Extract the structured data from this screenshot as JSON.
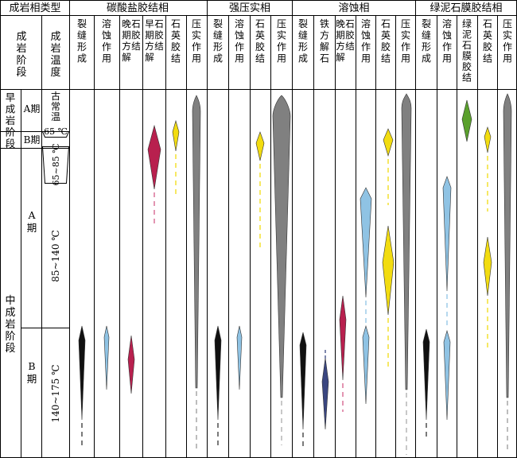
{
  "header": {
    "corner_label": "成岩相类型",
    "groups": [
      {
        "id": "carbonate",
        "label": "碳酸盐胶结相"
      },
      {
        "id": "compaction",
        "label": "强压实相"
      },
      {
        "id": "dissolution",
        "label": "溶蚀相"
      },
      {
        "id": "chlorite",
        "label": "绿泥石膜胶结相"
      }
    ],
    "stage_col": "成岩阶段",
    "temp_col": "成岩温度",
    "columns": [
      {
        "id": "c1",
        "label": "裂缝形成"
      },
      {
        "id": "c2",
        "label": "溶蚀作用"
      },
      {
        "id": "c3",
        "label": "晚期方解石胶结"
      },
      {
        "id": "c4",
        "label": "早期方解石胶结"
      },
      {
        "id": "c5",
        "label": "石英胶结"
      },
      {
        "id": "c6",
        "label": "压实作用"
      },
      {
        "id": "c7",
        "label": "裂缝形成"
      },
      {
        "id": "c8",
        "label": "溶蚀作用"
      },
      {
        "id": "c9",
        "label": "石英胶结"
      },
      {
        "id": "c10",
        "label": "压实作用"
      },
      {
        "id": "c11",
        "label": "裂缝形成"
      },
      {
        "id": "c12",
        "label": "铁方解石"
      },
      {
        "id": "c13",
        "label": "晚期方解石胶结"
      },
      {
        "id": "c14",
        "label": "溶蚀作用"
      },
      {
        "id": "c15",
        "label": "石英胶结"
      },
      {
        "id": "c16",
        "label": "压实作用"
      },
      {
        "id": "c17",
        "label": "裂缝形成"
      },
      {
        "id": "c18",
        "label": "溶蚀作用"
      },
      {
        "id": "c19",
        "label": "绿泥石膜胶结"
      },
      {
        "id": "c20",
        "label": "石英胶结"
      },
      {
        "id": "c21",
        "label": "压实作用"
      }
    ]
  },
  "stages": {
    "early": "早成岩阶段",
    "middle": "中成岩阶段",
    "early_a": "A期",
    "early_b": "B期",
    "middle_a": "A期",
    "middle_b": "B期"
  },
  "temperatures": {
    "t1": "古常温",
    "t2": "65 ℃",
    "t3": "65~85 ℃",
    "t4": "85~140 ℃",
    "t5": "140~175 ℃"
  },
  "colors": {
    "fracture": "#111111",
    "dissolution": "#8fc3e4",
    "late_calcite": "#b8204e",
    "early_calcite": "#b8204e",
    "quartz": "#f2dc10",
    "compaction": "#808080",
    "fe_calcite": "#3a4680",
    "chlorite": "#5aa02c"
  }
}
